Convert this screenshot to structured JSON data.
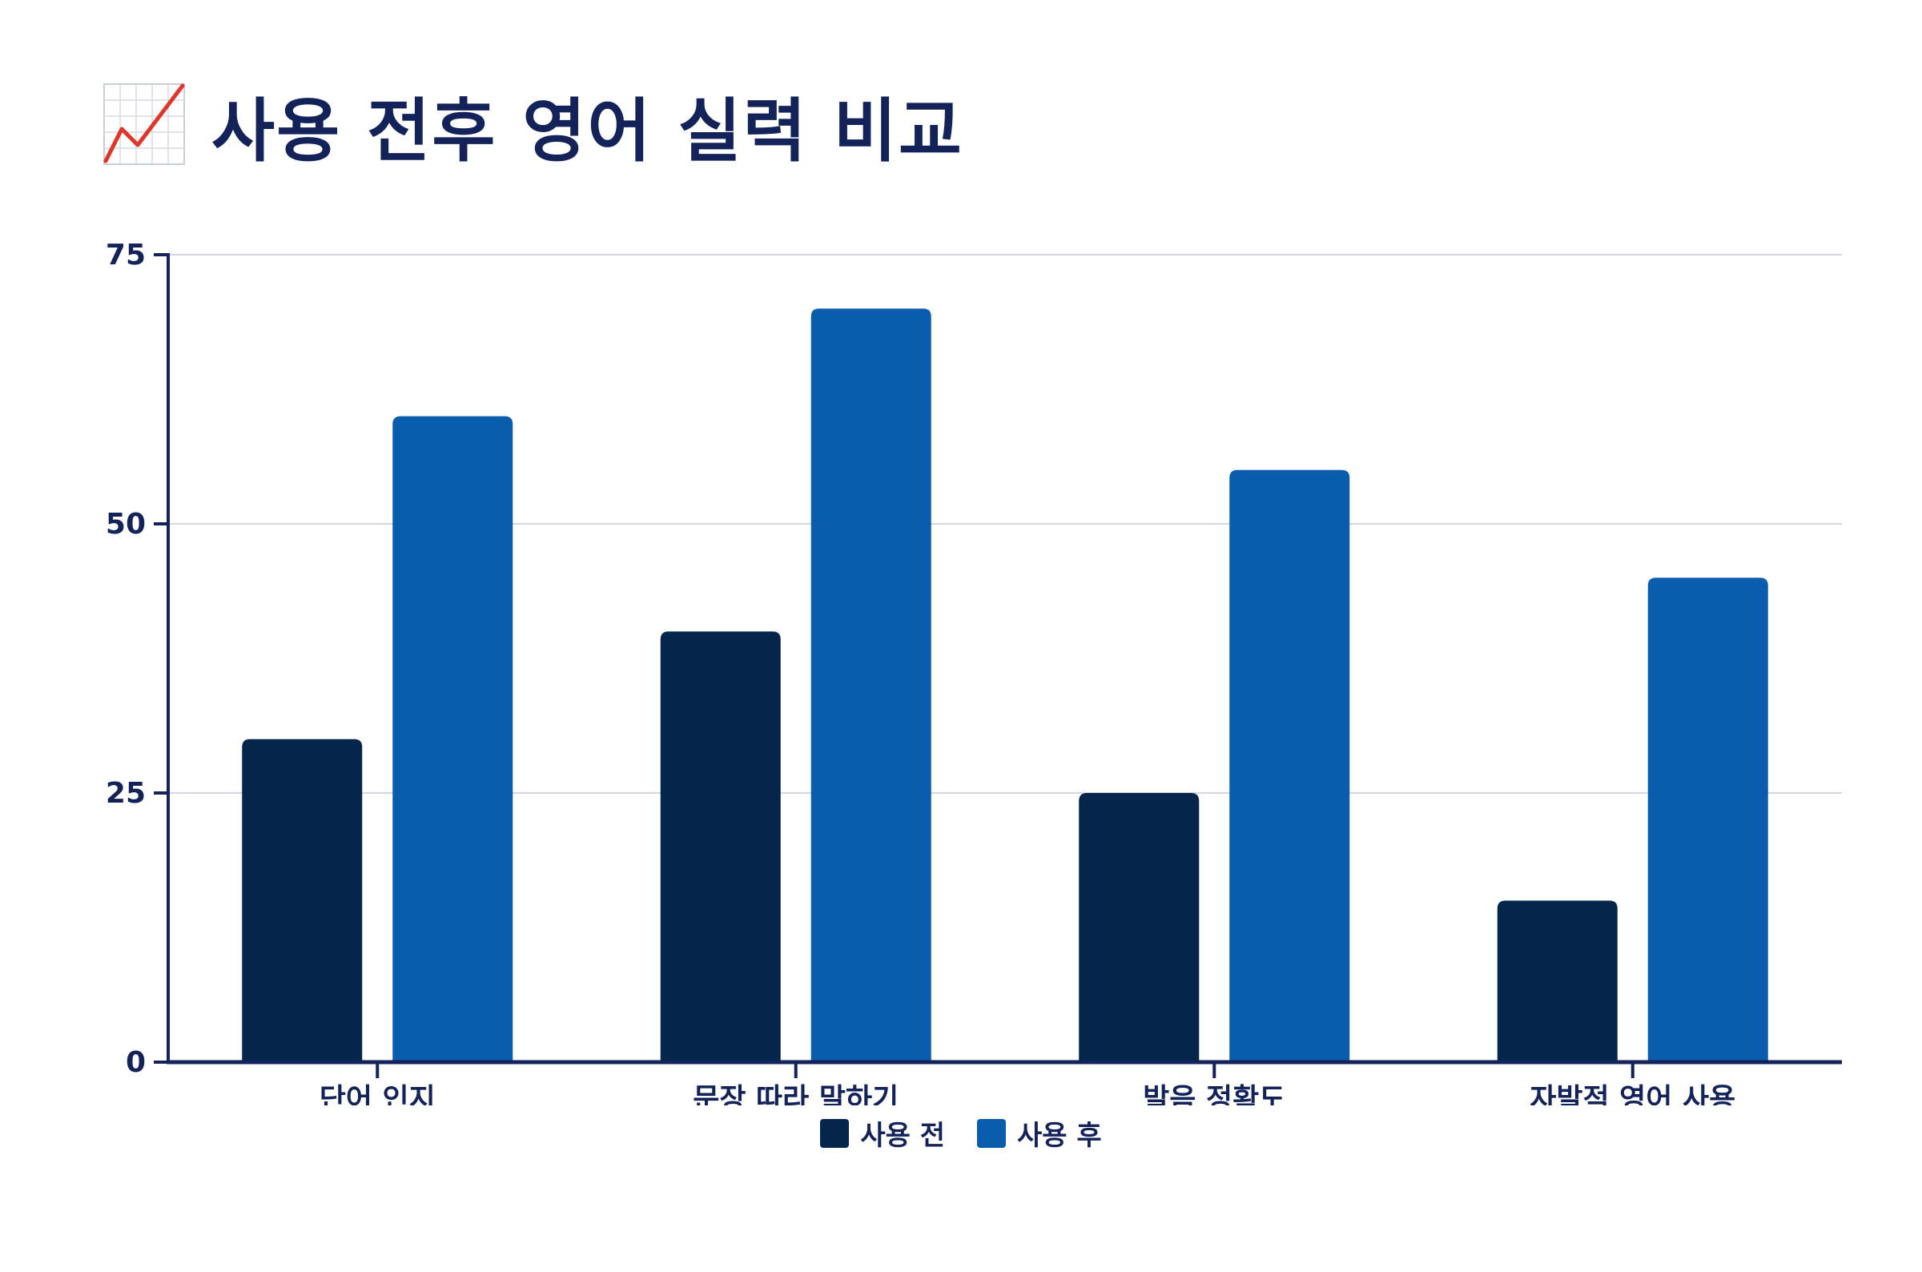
{
  "title": "사용 전후 영어 실력 비교",
  "title_icon": "chart-increasing-icon",
  "colors": {
    "before": "#04264b",
    "after": "#0a5cad",
    "axis": "#13235a",
    "grid": "#d3d6e6",
    "text": "#13235a"
  },
  "legend": [
    {
      "name": "사용 전",
      "color": "#04264b"
    },
    {
      "name": "사용 후",
      "color": "#0a5cad"
    }
  ],
  "chart_data": {
    "type": "bar",
    "title": "사용 전후 영어 실력 비교",
    "categories": [
      "단어 인지",
      "문장 따라 말하기",
      "발음 정확도",
      "자발적 영어 사용"
    ],
    "series": [
      {
        "name": "사용 전",
        "values": [
          30,
          40,
          25,
          15
        ]
      },
      {
        "name": "사용 후",
        "values": [
          60,
          70,
          55,
          45
        ]
      }
    ],
    "ylim": [
      0,
      75
    ],
    "yticks": [
      0,
      25,
      50,
      75
    ],
    "grid": true,
    "legend_position": "bottom-center",
    "xlabel": "",
    "ylabel": ""
  }
}
